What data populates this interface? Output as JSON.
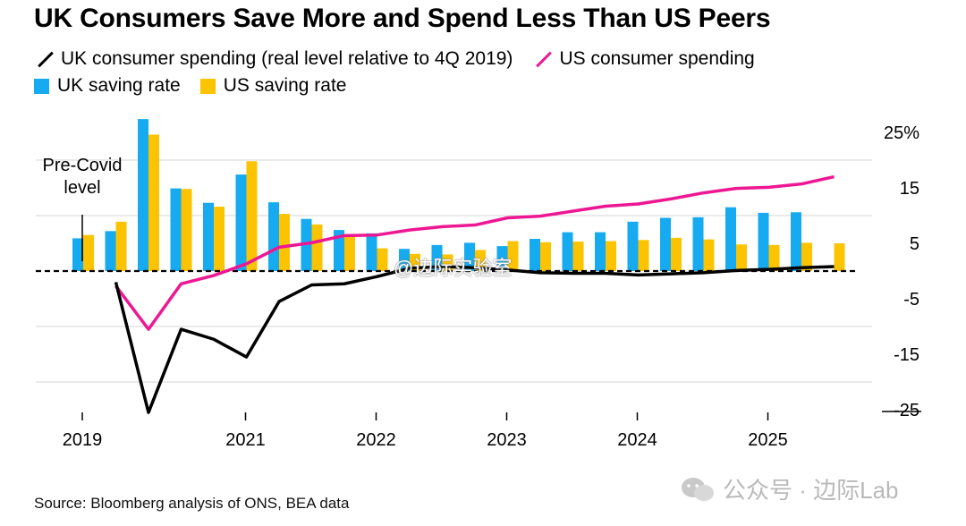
{
  "title": "UK Consumers Save More and Spend Less Than US Peers",
  "legend": {
    "uk_spending": "UK consumer spending (real level relative to 4Q 2019)",
    "us_spending": "US consumer spending",
    "uk_saving": "UK saving rate",
    "us_saving": "US saving rate"
  },
  "source": "Source: Bloomberg analysis of ONS, BEA data",
  "watermark": "公众号 · 边际Lab",
  "watermark_overlay": "@边际实验室",
  "colors": {
    "uk_saving": "#16aaf0",
    "us_saving": "#fcc300",
    "uk_spending": "#000000",
    "us_spending": "#ee1793"
  },
  "chart_data": {
    "type": "bar+line",
    "title": "UK Consumers Save More and Spend Less Than US Peers",
    "x": [
      "2019Q4",
      "2020Q1",
      "2020Q2",
      "2020Q3",
      "2020Q4",
      "2021Q1",
      "2021Q2",
      "2021Q3",
      "2021Q4",
      "2022Q1",
      "2022Q2",
      "2022Q3",
      "2022Q4",
      "2023Q1",
      "2023Q2",
      "2023Q3",
      "2023Q4",
      "2024Q1",
      "2024Q2",
      "2024Q3",
      "2024Q4",
      "2025Q1",
      "2025Q2",
      "2025Q3"
    ],
    "x_tick_labels": [
      "2019",
      "2021",
      "2022",
      "2023",
      "2024",
      "2025"
    ],
    "y_tick_labels": [
      "25%",
      "15",
      "5",
      "-5",
      "-15",
      "-25"
    ],
    "ylim": [
      -27,
      27
    ],
    "reference_line": {
      "value": 0,
      "label": "Pre-Covid level"
    },
    "series": [
      {
        "name": "UK saving rate",
        "kind": "bar",
        "values": [
          5.9,
          7.2,
          27.4,
          14.9,
          12.3,
          17.4,
          12.4,
          9.4,
          7.4,
          6.8,
          4.0,
          4.7,
          5.1,
          4.5,
          5.8,
          7.0,
          7.0,
          8.9,
          9.6,
          9.7,
          11.5,
          10.5,
          10.6,
          0
        ]
      },
      {
        "name": "US saving rate",
        "kind": "bar",
        "values": [
          6.5,
          8.9,
          24.6,
          14.8,
          11.6,
          19.8,
          10.3,
          8.4,
          6.6,
          4.1,
          3.1,
          3.0,
          3.8,
          5.4,
          5.2,
          5.3,
          5.4,
          5.6,
          6.0,
          5.7,
          4.8,
          4.7,
          5.1,
          5.0
        ]
      },
      {
        "name": "UK consumer spending (real level relative to 4Q 2019)",
        "kind": "line",
        "values": [
          null,
          -2.0,
          -25.5,
          -10.5,
          -12.3,
          -15.5,
          -5.5,
          -2.5,
          -2.3,
          -1.0,
          0.5,
          0.8,
          0.6,
          0.2,
          -0.3,
          -0.4,
          -0.4,
          -0.7,
          -0.5,
          -0.3,
          0.1,
          0.3,
          0.6,
          0.8
        ]
      },
      {
        "name": "US consumer spending",
        "kind": "line",
        "values": [
          null,
          -2.7,
          -10.5,
          -2.3,
          -0.8,
          1.3,
          4.3,
          5.1,
          6.4,
          6.5,
          7.4,
          8.0,
          8.3,
          9.6,
          9.9,
          10.8,
          11.7,
          12.1,
          13.0,
          14.1,
          14.9,
          15.1,
          15.7,
          17.0
        ]
      }
    ]
  }
}
